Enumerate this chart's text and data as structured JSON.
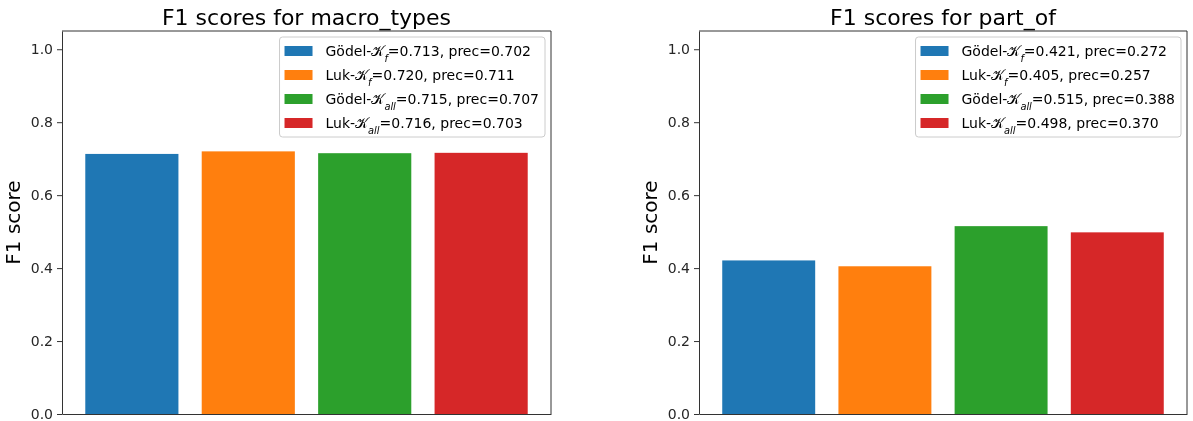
{
  "chart_data": [
    {
      "type": "bar",
      "title": "F1 scores for macro_types",
      "ylabel": "F1 score",
      "categories": [
        null,
        null,
        null,
        null
      ],
      "series": [
        {
          "name": "Gödel-𝒦$_{f}$=0.713, prec=0.702",
          "color": "#1f77b4",
          "values": [
            0.713,
            null,
            null,
            null
          ]
        },
        {
          "name": "Luk-𝒦$_{f}$=0.720, prec=0.711",
          "color": "#ff7f0e",
          "values": [
            null,
            0.72,
            null,
            null
          ]
        },
        {
          "name": "Gödel-𝒦$_{all}$=0.715, prec=0.707",
          "color": "#2ca02c",
          "values": [
            null,
            null,
            0.715,
            null
          ]
        },
        {
          "name": "Luk-𝒦$_{all}$=0.716, prec=0.703",
          "color": "#d62728",
          "values": [
            null,
            null,
            null,
            0.716
          ]
        }
      ],
      "ylim": [
        0,
        1.05
      ],
      "yticks": [
        {
          "value": 0,
          "label": "0.0"
        },
        {
          "value": 0.2,
          "label": "0.2"
        },
        {
          "value": 0.4,
          "label": "0.4"
        },
        {
          "value": 0.6,
          "label": "0.6"
        },
        {
          "value": 0.8,
          "label": "0.8"
        },
        {
          "value": 1,
          "label": "1.0"
        }
      ],
      "tick_labels": "y",
      "legend": "top right"
    },
    {
      "type": "bar",
      "title": "F1 scores for part_of",
      "ylabel": "F1 score",
      "categories": [
        null,
        null,
        null,
        null
      ],
      "series": [
        {
          "name": "Gödel-𝒦$_{f}$=0.421, prec=0.272",
          "color": "#1f77b4",
          "values": [
            0.421,
            null,
            null,
            null
          ]
        },
        {
          "name": "Luk-𝒦$_{f}$=0.405, prec=0.257",
          "color": "#ff7f0e",
          "values": [
            null,
            0.405,
            null,
            null
          ]
        },
        {
          "name": "Gödel-𝒦$_{all}$=0.515, prec=0.388",
          "color": "#2ca02c",
          "values": [
            null,
            null,
            0.515,
            null
          ]
        },
        {
          "name": "Luk-𝒦$_{all}$=0.498, prec=0.370",
          "color": "#d62728",
          "values": [
            null,
            null,
            null,
            0.498
          ]
        }
      ],
      "ylim": [
        0,
        1.05
      ],
      "yticks": [
        {
          "value": 0,
          "label": "0.0"
        },
        {
          "value": 0.2,
          "label": "0.2"
        },
        {
          "value": 0.4,
          "label": "0.4"
        },
        {
          "value": 0.6,
          "label": "0.6"
        },
        {
          "value": 0.8,
          "label": "0.8"
        },
        {
          "value": 1,
          "label": "1.0"
        }
      ],
      "tick_labels": "y",
      "legend": "top right"
    }
  ]
}
